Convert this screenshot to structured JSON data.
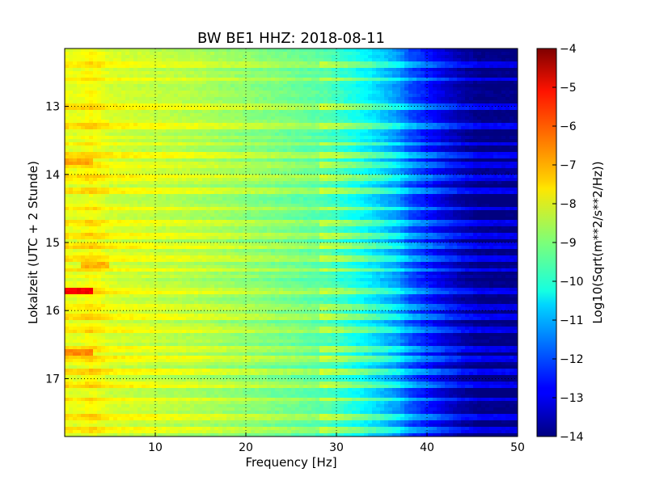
{
  "chart_data": {
    "type": "heatmap",
    "title": "BW BE1 HHZ: 2018-08-11",
    "xlabel": "Frequency [Hz]",
    "ylabel": "Lokalzeit (UTC + 2 Stunde)",
    "xlim": [
      0,
      50
    ],
    "ylim": [
      12.15,
      17.85
    ],
    "y_inverted": true,
    "x_ticks": [
      10,
      20,
      30,
      40,
      50
    ],
    "y_ticks": [
      13,
      14,
      15,
      16,
      17
    ],
    "grid": true,
    "colormap": "jet",
    "colorbar": {
      "label": "Log10(Sqrt(m**2/s**2/Hz))",
      "min": -14,
      "max": -4,
      "ticks": [
        -4,
        -5,
        -6,
        -7,
        -8,
        -9,
        -10,
        -11,
        -12,
        -13,
        -14
      ]
    },
    "spectrum_profile": {
      "frequency_hz": [
        0,
        1,
        3,
        5,
        10,
        15,
        20,
        25,
        29,
        31,
        33,
        35,
        37,
        38,
        40,
        42,
        44,
        46,
        50
      ],
      "level": [
        -7.9,
        -8.1,
        -7.8,
        -8.2,
        -8.4,
        -8.6,
        -8.9,
        -9.2,
        -9.5,
        -9.9,
        -10.3,
        -10.8,
        -11.4,
        -12.0,
        -12.6,
        -13.2,
        -13.7,
        -14.0,
        -14.0
      ]
    },
    "noisy_hours": [
      12.4,
      12.6,
      13.0,
      13.3,
      13.55,
      13.7,
      13.85,
      14.05,
      14.25,
      14.5,
      14.7,
      14.9,
      15.05,
      15.25,
      15.4,
      15.7,
      15.95,
      16.1,
      16.3,
      16.55,
      16.7,
      16.9,
      17.1,
      17.3,
      17.55,
      17.75
    ],
    "notable_features": [
      {
        "hour": 15.72,
        "freq_range_hz": [
          0,
          3
        ],
        "level": -5.2
      },
      {
        "hour": 16.6,
        "freq_range_hz": [
          0,
          3
        ],
        "level": -6.6
      },
      {
        "hour": 13.8,
        "freq_range_hz": [
          0,
          3
        ],
        "level": -6.9
      },
      {
        "hour": 15.35,
        "freq_range_hz": [
          2,
          5
        ],
        "level": -7.0
      }
    ]
  }
}
